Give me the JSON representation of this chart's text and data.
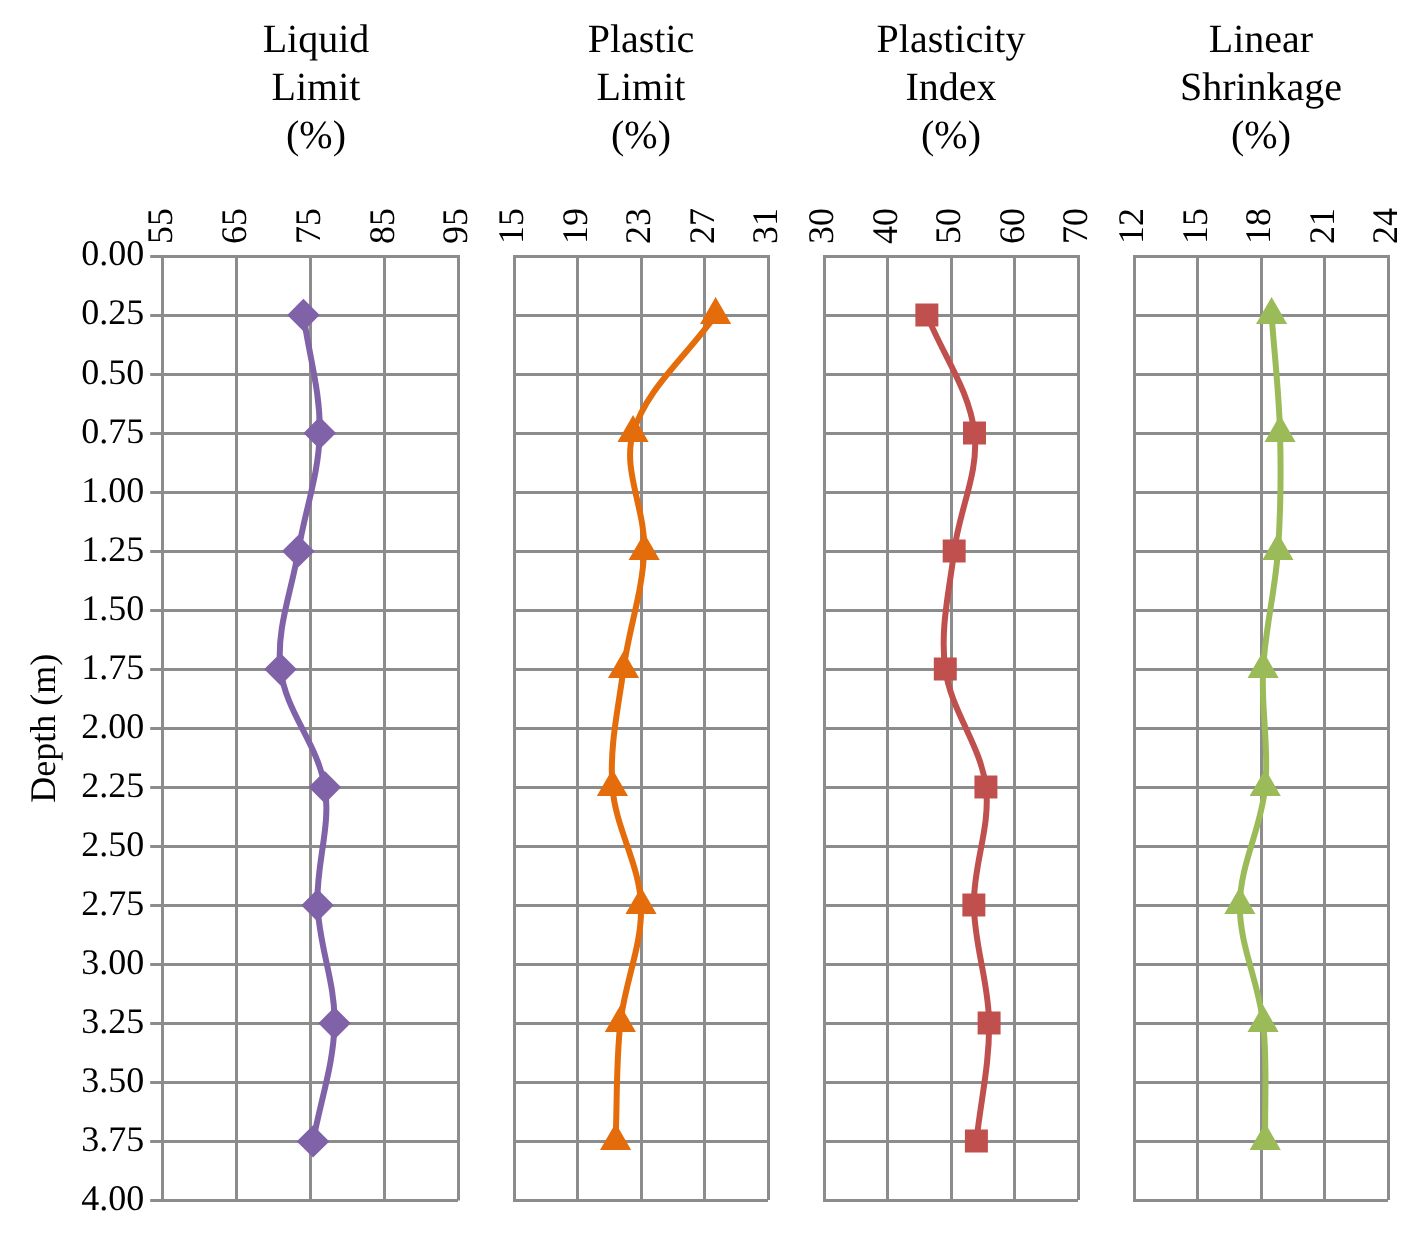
{
  "chart_data": [
    {
      "type": "line",
      "title": "Liquid Limit (%)",
      "ylabel": "Depth (m)",
      "x": [
        74.1,
        76.3,
        73.4,
        71,
        77,
        76,
        78.3,
        75.4
      ],
      "values": [
        0.25,
        0.75,
        1.25,
        1.75,
        2.25,
        2.75,
        3.25,
        3.75
      ],
      "color": "#7f62a8",
      "marker": "diamond",
      "xlim": [
        55,
        95
      ],
      "xticks": [
        55,
        65,
        75,
        85,
        95
      ],
      "ylim": [
        4,
        0
      ],
      "yticks": [
        {
          "value": 0,
          "label": "0.00"
        },
        0.25,
        {
          "value": 0.5,
          "label": "0.50"
        },
        0.75,
        {
          "value": 1,
          "label": "1.00"
        },
        1.25,
        {
          "value": 1.5,
          "label": "1.50"
        },
        1.75,
        {
          "value": 2,
          "label": "2.00"
        },
        2.25,
        {
          "value": 2.5,
          "label": "2.50"
        },
        2.75,
        {
          "value": 3,
          "label": "3.00"
        },
        3.25,
        {
          "value": 3.5,
          "label": "3.50"
        },
        3.75,
        {
          "value": 4,
          "label": "4.00"
        }
      ],
      "grid": true,
      "legend": false
    },
    {
      "type": "line",
      "title": "Plastic Limit (%)",
      "x": [
        27.7,
        22.5,
        23.2,
        21.9,
        21.2,
        23,
        21.7,
        21.4
      ],
      "values": [
        0.25,
        0.75,
        1.25,
        1.75,
        2.25,
        2.75,
        3.25,
        3.75
      ],
      "color": "#e46c0a",
      "marker": "triangle",
      "xlim": [
        15,
        31
      ],
      "xticks": [
        15,
        19,
        23,
        27,
        31
      ],
      "ylim": [
        4,
        0
      ],
      "yticks": [
        0,
        0.25,
        0.5,
        0.75,
        1,
        1.25,
        1.5,
        1.75,
        2,
        2.25,
        2.5,
        2.75,
        3,
        3.25,
        3.5,
        3.75,
        4
      ],
      "grid": true,
      "legend": false,
      "tick_labels": "x"
    },
    {
      "type": "line",
      "title": "Plasticity Index (%)",
      "x": [
        46.2,
        53.7,
        50.5,
        49.1,
        55.5,
        53.6,
        56,
        54
      ],
      "values": [
        0.25,
        0.75,
        1.25,
        1.75,
        2.25,
        2.75,
        3.25,
        3.75
      ],
      "color": "#c0504d",
      "marker": "square",
      "xlim": [
        30,
        70
      ],
      "xticks": [
        30,
        40,
        50,
        60,
        70
      ],
      "ylim": [
        4,
        0
      ],
      "yticks": [
        0,
        0.25,
        0.5,
        0.75,
        1,
        1.25,
        1.5,
        1.75,
        2,
        2.25,
        2.5,
        2.75,
        3,
        3.25,
        3.5,
        3.75,
        4
      ],
      "grid": true,
      "legend": false,
      "tick_labels": "x"
    },
    {
      "type": "line",
      "title": "Linear Shrinkage (%)",
      "x": [
        18.5,
        18.9,
        18.8,
        18.1,
        18.2,
        17,
        18.1,
        18.2
      ],
      "values": [
        0.25,
        0.75,
        1.25,
        1.75,
        2.25,
        2.75,
        3.25,
        3.75
      ],
      "color": "#9bbb59",
      "marker": "triangle",
      "xlim": [
        12,
        24
      ],
      "xticks": [
        12,
        15,
        18,
        21,
        24
      ],
      "ylim": [
        4,
        0
      ],
      "yticks": [
        0,
        0.25,
        0.5,
        0.75,
        1,
        1.25,
        1.5,
        1.75,
        2,
        2.25,
        2.5,
        2.75,
        3,
        3.25,
        3.5,
        3.75,
        4
      ],
      "grid": true,
      "legend": false,
      "tick_labels": "x"
    }
  ]
}
